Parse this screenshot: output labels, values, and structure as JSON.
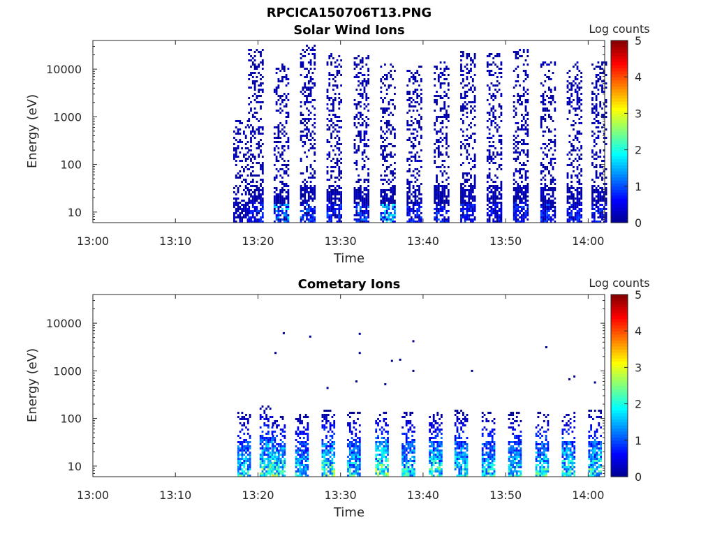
{
  "figure": {
    "title": "RPCICA150706T13.PNG"
  },
  "chart_data": [
    {
      "type": "heatmap",
      "title": "Solar Wind Ions",
      "xlabel": "Time",
      "ylabel": "Energy (eV)",
      "colorbar_label": "Log counts",
      "x_ticks": [
        "13:00",
        "13:10",
        "13:20",
        "13:30",
        "13:40",
        "13:50",
        "14:00"
      ],
      "y_ticks": [
        "10",
        "100",
        "1000",
        "10000"
      ],
      "y_scale": "log",
      "ylim": [
        6,
        40000
      ],
      "xlim_minutes": [
        0,
        62
      ],
      "clim": [
        0,
        5
      ],
      "colorbar_ticks": [
        "0",
        "1",
        "2",
        "3",
        "4",
        "5"
      ],
      "colormap": [
        "#00008f",
        "#0000ff",
        "#0080ff",
        "#00ffff",
        "#80ff80",
        "#ffff00",
        "#ff8000",
        "#ff0000",
        "#800000"
      ],
      "data_start_minute": 17.5,
      "bursts": [
        {
          "center_minute": 18.0,
          "max_energy_ev": 900,
          "peak_log_counts": 0.4
        },
        {
          "center_minute": 19.8,
          "max_energy_ev": 28000,
          "peak_log_counts": 1.0
        },
        {
          "center_minute": 22.9,
          "max_energy_ev": 14000,
          "peak_log_counts": 1.9
        },
        {
          "center_minute": 26.1,
          "max_energy_ev": 35000,
          "peak_log_counts": 1.3
        },
        {
          "center_minute": 29.3,
          "max_energy_ev": 22000,
          "peak_log_counts": 1.0
        },
        {
          "center_minute": 32.6,
          "max_energy_ev": 20000,
          "peak_log_counts": 1.3
        },
        {
          "center_minute": 35.8,
          "max_energy_ev": 14000,
          "peak_log_counts": 2.0
        },
        {
          "center_minute": 39.0,
          "max_energy_ev": 12000,
          "peak_log_counts": 1.0
        },
        {
          "center_minute": 42.3,
          "max_energy_ev": 15000,
          "peak_log_counts": 1.1
        },
        {
          "center_minute": 45.5,
          "max_energy_ev": 26000,
          "peak_log_counts": 1.0
        },
        {
          "center_minute": 48.7,
          "max_energy_ev": 24000,
          "peak_log_counts": 1.0
        },
        {
          "center_minute": 51.9,
          "max_energy_ev": 28000,
          "peak_log_counts": 1.0
        },
        {
          "center_minute": 55.2,
          "max_energy_ev": 16000,
          "peak_log_counts": 1.1
        },
        {
          "center_minute": 58.4,
          "max_energy_ev": 15000,
          "peak_log_counts": 1.0
        },
        {
          "center_minute": 61.4,
          "max_energy_ev": 16000,
          "peak_log_counts": 1.0
        }
      ]
    },
    {
      "type": "heatmap",
      "title": "Cometary Ions",
      "xlabel": "Time",
      "ylabel": "Energy (eV)",
      "colorbar_label": "Log counts",
      "x_ticks": [
        "13:00",
        "13:10",
        "13:20",
        "13:30",
        "13:40",
        "13:50",
        "14:00"
      ],
      "y_ticks": [
        "10",
        "100",
        "1000",
        "10000"
      ],
      "y_scale": "log",
      "ylim": [
        6,
        40000
      ],
      "xlim_minutes": [
        0,
        62
      ],
      "clim": [
        0,
        5
      ],
      "colorbar_ticks": [
        "0",
        "1",
        "2",
        "3",
        "4",
        "5"
      ],
      "colormap": [
        "#00008f",
        "#0000ff",
        "#0080ff",
        "#00ffff",
        "#80ff80",
        "#ffff00",
        "#ff8000",
        "#ff0000",
        "#800000"
      ],
      "data_start_minute": 17.5,
      "bursts": [
        {
          "center_minute": 18.3,
          "max_energy_ev": 150,
          "peak_log_counts": 2.3
        },
        {
          "center_minute": 21.0,
          "max_energy_ev": 200,
          "peak_log_counts": 2.8
        },
        {
          "center_minute": 22.5,
          "max_energy_ev": 120,
          "peak_log_counts": 2.9
        },
        {
          "center_minute": 25.3,
          "max_energy_ev": 130,
          "peak_log_counts": 2.3
        },
        {
          "center_minute": 28.5,
          "max_energy_ev": 160,
          "peak_log_counts": 2.7
        },
        {
          "center_minute": 31.6,
          "max_energy_ev": 140,
          "peak_log_counts": 2.3
        },
        {
          "center_minute": 35.0,
          "max_energy_ev": 150,
          "peak_log_counts": 2.9
        },
        {
          "center_minute": 38.2,
          "max_energy_ev": 150,
          "peak_log_counts": 2.3
        },
        {
          "center_minute": 41.5,
          "max_energy_ev": 150,
          "peak_log_counts": 2.5
        },
        {
          "center_minute": 44.6,
          "max_energy_ev": 160,
          "peak_log_counts": 2.5
        },
        {
          "center_minute": 47.9,
          "max_energy_ev": 150,
          "peak_log_counts": 2.3
        },
        {
          "center_minute": 51.1,
          "max_energy_ev": 140,
          "peak_log_counts": 2.3
        },
        {
          "center_minute": 54.4,
          "max_energy_ev": 140,
          "peak_log_counts": 2.5
        },
        {
          "center_minute": 57.6,
          "max_energy_ev": 160,
          "peak_log_counts": 2.5
        },
        {
          "center_minute": 60.8,
          "max_energy_ev": 160,
          "peak_log_counts": 2.5
        }
      ],
      "sparse_points": [
        {
          "minute": 23.0,
          "energy_ev": 6500
        },
        {
          "minute": 22.0,
          "energy_ev": 2500
        },
        {
          "minute": 26.2,
          "energy_ev": 5500
        },
        {
          "minute": 32.2,
          "energy_ev": 6300
        },
        {
          "minute": 32.2,
          "energy_ev": 2500
        },
        {
          "minute": 36.1,
          "energy_ev": 1700
        },
        {
          "minute": 37.1,
          "energy_ev": 1800
        },
        {
          "minute": 38.7,
          "energy_ev": 4400
        },
        {
          "minute": 38.7,
          "energy_ev": 1050
        },
        {
          "minute": 45.8,
          "energy_ev": 1050
        },
        {
          "minute": 54.8,
          "energy_ev": 3300
        },
        {
          "minute": 28.3,
          "energy_ev": 460
        },
        {
          "minute": 31.8,
          "energy_ev": 630
        },
        {
          "minute": 35.3,
          "energy_ev": 550
        },
        {
          "minute": 57.6,
          "energy_ev": 700
        },
        {
          "minute": 58.2,
          "energy_ev": 800
        },
        {
          "minute": 60.7,
          "energy_ev": 600
        }
      ]
    }
  ]
}
